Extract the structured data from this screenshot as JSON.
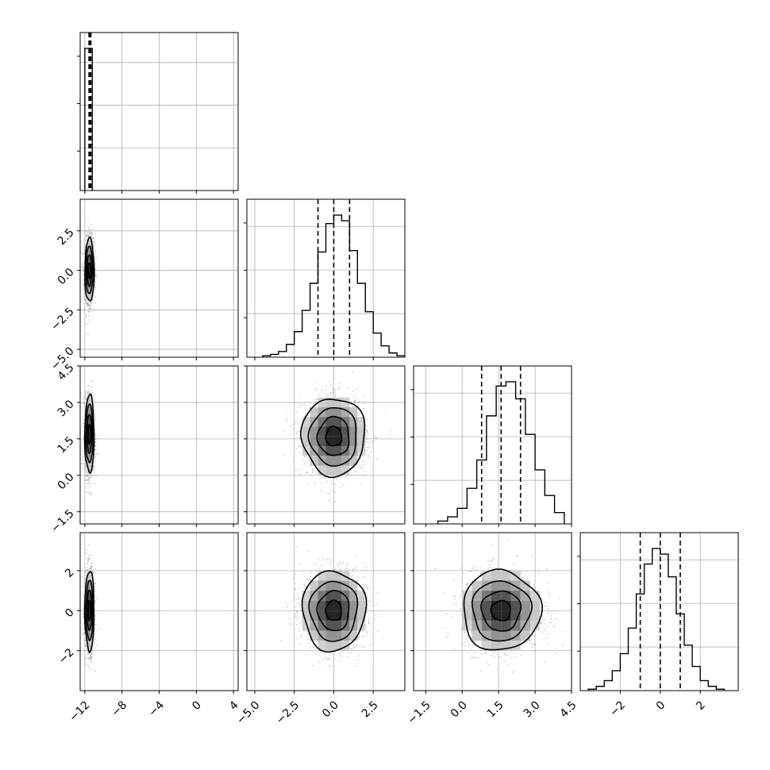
{
  "chart_data": {
    "type": "corner",
    "title": "",
    "grid": true,
    "parameters": [
      {
        "range": [
          -12.5,
          4.5
        ],
        "ticks": [
          -12,
          -8,
          -4,
          0,
          4
        ],
        "tick_labels": [
          "−12",
          "−8",
          "−4",
          "0",
          "4"
        ],
        "quantiles": [
          -11.55,
          -11.45,
          -11.35
        ]
      },
      {
        "range": [
          -5.5,
          4.5
        ],
        "ticks": [
          -5.0,
          -2.5,
          0.0,
          2.5
        ],
        "tick_labels": [
          "−5.0",
          "−2.5",
          "0.0",
          "2.5"
        ],
        "quantiles": [
          -1.0,
          0.0,
          1.0
        ]
      },
      {
        "range": [
          -2.0,
          4.5
        ],
        "ticks": [
          -1.5,
          0.0,
          1.5,
          3.0,
          4.5
        ],
        "tick_labels": [
          "−1.5",
          "0.0",
          "1.5",
          "3.0",
          "4.5"
        ],
        "quantiles": [
          0.8,
          1.6,
          2.4
        ]
      },
      {
        "range": [
          -4.0,
          3.9
        ],
        "ticks": [
          -2,
          0,
          2
        ],
        "tick_labels": [
          "−2",
          "0",
          "2"
        ],
        "quantiles": [
          -1.0,
          0.0,
          1.0
        ]
      }
    ],
    "histograms": [
      {
        "param": 0,
        "edges": [
          -12.0,
          -11.2
        ],
        "counts": [
          100
        ]
      },
      {
        "param": 1,
        "edges": [
          -4.5,
          -4.0,
          -3.5,
          -3.0,
          -2.5,
          -2.0,
          -1.5,
          -1.0,
          -0.5,
          0.0,
          0.5,
          1.0,
          1.5,
          2.0,
          2.5,
          3.0,
          3.5,
          4.0,
          4.5
        ],
        "counts": [
          1,
          2,
          4,
          9,
          18,
          33,
          52,
          74,
          94,
          100,
          96,
          75,
          52,
          32,
          17,
          8,
          3,
          1
        ]
      },
      {
        "param": 2,
        "edges": [
          -1.0,
          -0.6,
          -0.2,
          0.2,
          0.6,
          1.0,
          1.4,
          1.8,
          2.2,
          2.6,
          3.0,
          3.4,
          3.8,
          4.2
        ],
        "counts": [
          2,
          5,
          11,
          25,
          45,
          76,
          97,
          100,
          88,
          63,
          38,
          20,
          8
        ]
      },
      {
        "param": 3,
        "edges": [
          -3.6,
          -3.2,
          -2.8,
          -2.4,
          -2.0,
          -1.6,
          -1.2,
          -0.8,
          -0.4,
          0.0,
          0.4,
          0.8,
          1.2,
          1.6,
          2.0,
          2.4,
          2.8,
          3.2
        ],
        "counts": [
          1,
          3,
          7,
          14,
          26,
          44,
          68,
          89,
          100,
          96,
          80,
          54,
          32,
          17,
          7,
          3,
          1
        ]
      }
    ],
    "pair_densities": [
      {
        "x_param": 0,
        "y_param": 1,
        "x_center": -11.5,
        "y_center": 0.0,
        "x_sigma": 0.25,
        "y_sigma": 1.0
      },
      {
        "x_param": 0,
        "y_param": 2,
        "x_center": -11.5,
        "y_center": 1.7,
        "x_sigma": 0.25,
        "y_sigma": 0.8
      },
      {
        "x_param": 0,
        "y_param": 3,
        "x_center": -11.5,
        "y_center": 0.0,
        "x_sigma": 0.25,
        "y_sigma": 1.0
      },
      {
        "x_param": 1,
        "y_param": 2,
        "x_center": 0.0,
        "y_center": 1.6,
        "x_sigma": 1.0,
        "y_sigma": 0.8
      },
      {
        "x_param": 1,
        "y_param": 3,
        "x_center": 0.0,
        "y_center": 0.0,
        "x_sigma": 1.0,
        "y_sigma": 1.0
      },
      {
        "x_param": 2,
        "y_param": 3,
        "x_center": 1.6,
        "y_center": 0.0,
        "x_sigma": 0.8,
        "y_sigma": 1.0
      }
    ],
    "colors": {
      "line": "#000000",
      "grid": "#b0b0b0",
      "points": "#9a9a9a"
    }
  }
}
